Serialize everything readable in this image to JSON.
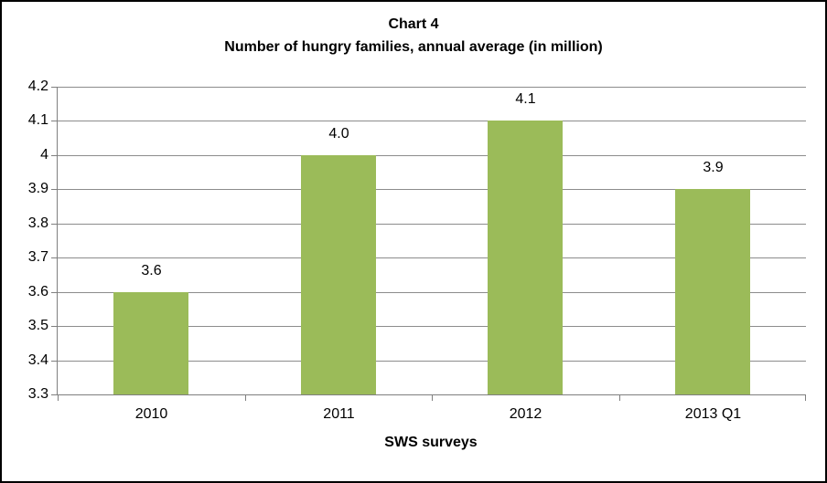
{
  "frame": {
    "border_color": "#000000",
    "background_color": "#ffffff"
  },
  "chart_data": {
    "type": "bar",
    "title": "Chart 4",
    "subtitle": "Number of hungry families, annual average (in million)",
    "categories": [
      "2010",
      "2011",
      "2012",
      "2013 Q1"
    ],
    "values": [
      3.6,
      4.0,
      4.1,
      3.9
    ],
    "value_labels": [
      "3.6",
      "4.0",
      "4.1",
      "3.9"
    ],
    "xlabel": "SWS surveys",
    "ylabel": "",
    "ylim": [
      3.3,
      4.2
    ],
    "ytick_step": 0.1,
    "ytick_labels": [
      "4.2",
      "4.1",
      "4",
      "3.9",
      "3.8",
      "3.7",
      "3.6",
      "3.5",
      "3.4",
      "3.3"
    ],
    "grid": true,
    "legend": "none",
    "bar_color": "#9bbb59",
    "axis_color": "#7f7f7f",
    "gridline_color": "#8c8c8c",
    "text_color": "#000000"
  }
}
